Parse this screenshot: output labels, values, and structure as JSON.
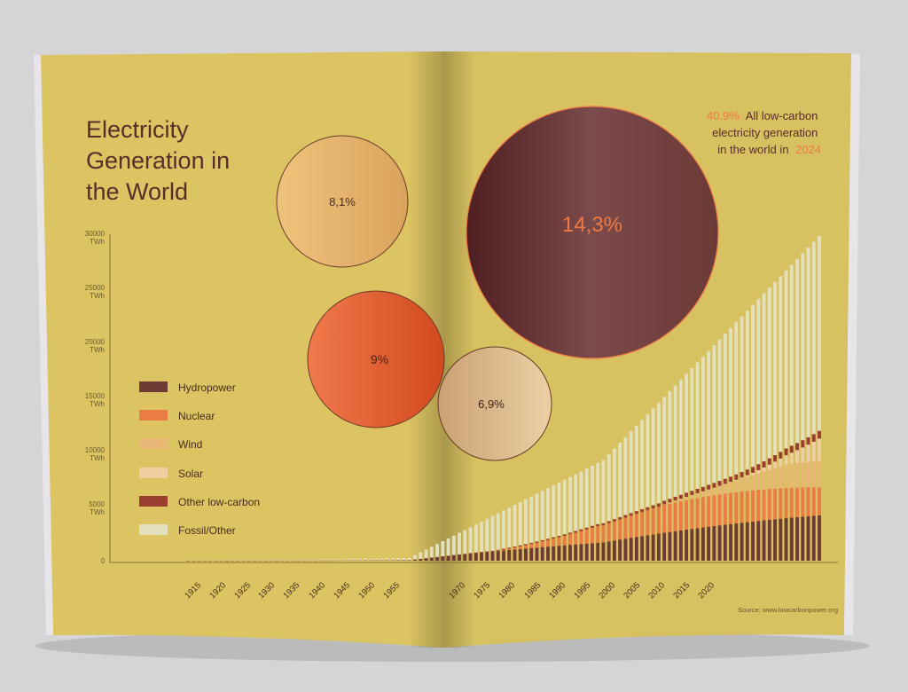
{
  "chart_data": {
    "type": "bar",
    "stacked": true,
    "title": "Electricity Generation in the World",
    "title_lines": [
      "Electricity",
      "Generation in",
      "the World"
    ],
    "y_ticks": [
      {
        "value": 0,
        "label": "0",
        "unit": ""
      },
      {
        "value": 5000,
        "label": "5000",
        "unit": "TWh"
      },
      {
        "value": 10000,
        "label": "10000",
        "unit": "TWh"
      },
      {
        "value": 15000,
        "label": "15000",
        "unit": "TWh"
      },
      {
        "value": 20000,
        "label": "20000",
        "unit": "TWh"
      },
      {
        "value": 25000,
        "label": "25000",
        "unit": "TWh"
      },
      {
        "value": 30000,
        "label": "30000",
        "unit": "TWh"
      }
    ],
    "ylim": [
      0,
      30000
    ],
    "x_tick_labels": [
      "1915",
      "1920",
      "1925",
      "1930",
      "1935",
      "1940",
      "1945",
      "1950",
      "1955",
      "1970",
      "1975",
      "1980",
      "1985",
      "1990",
      "1995",
      "2000",
      "2005",
      "2010",
      "2015",
      "2020"
    ],
    "legend": {
      "placement": "left",
      "entries": [
        {
          "name": "Hydropower",
          "color": "#6e3a34"
        },
        {
          "name": "Nuclear",
          "color": "#ec7c46"
        },
        {
          "name": "Wind",
          "color": "#e8b775"
        },
        {
          "name": "Solar",
          "color": "#efcfa2"
        },
        {
          "name": "Other low-carbon",
          "color": "#9a3f2f"
        },
        {
          "name": "Fossil/Other",
          "color": "#e3e0bb"
        }
      ]
    },
    "series": [
      {
        "name": "Hydropower",
        "color": "#6e3a34",
        "values": []
      },
      {
        "name": "Nuclear",
        "color": "#ec7c46",
        "values": []
      },
      {
        "name": "Wind",
        "color": "#e8b775",
        "values": []
      },
      {
        "name": "Solar",
        "color": "#efcfa2",
        "values": []
      },
      {
        "name": "Other low-carbon",
        "color": "#9a3f2f",
        "values": []
      },
      {
        "name": "Fossil/Other",
        "color": "#e3e0bb",
        "values": []
      }
    ],
    "bubbles": [
      {
        "label": "8,1%",
        "value": 8.1,
        "color": "#e6b46e"
      },
      {
        "label": "9%",
        "value": 9,
        "color": "#ea6c3c"
      },
      {
        "label": "6,9%",
        "value": 6.9,
        "color": "#dcb88a"
      },
      {
        "label": "14,3%",
        "value": 14.3,
        "color": "#6f3535"
      }
    ],
    "annotation": {
      "highlight_pct": "40.9%",
      "text_1": "All low-carbon",
      "text_2": "electricity generation",
      "text_3": "in the world in",
      "year": "2024"
    },
    "source": "Source: www.lowcarbonpower.org"
  },
  "colors": {
    "page": "#dcc462",
    "page_right": "#d7c160",
    "title": "#5a2c2a",
    "axis": "#6b5a2a",
    "accent": "#ef7a45"
  }
}
